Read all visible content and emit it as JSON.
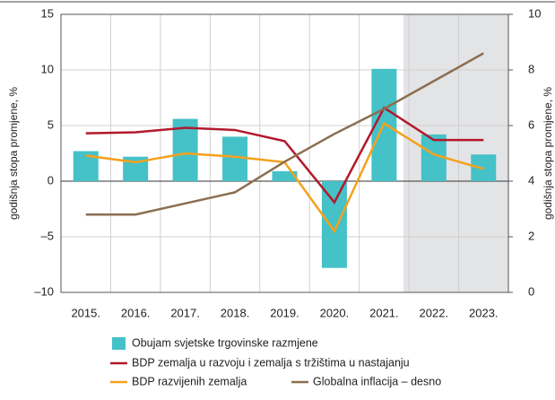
{
  "chart_data": {
    "type": "bar_line",
    "categories": [
      "2015.",
      "2016.",
      "2017.",
      "2018.",
      "2019.",
      "2020.",
      "2021.",
      "2022.",
      "2023."
    ],
    "series": [
      {
        "name": "Obujam svjetske trgovinske razmjene",
        "type": "bar",
        "color": "#45c1c8",
        "axis": "y",
        "values": [
          2.7,
          2.2,
          5.6,
          4.0,
          0.9,
          -7.8,
          10.1,
          4.2,
          2.4
        ]
      },
      {
        "name": "BDP zemalja u razvoju i zemalja s tržištima u nastajanju",
        "type": "line",
        "color": "#b3182c",
        "axis": "y",
        "values": [
          4.3,
          4.4,
          4.8,
          4.6,
          3.6,
          -1.9,
          6.6,
          3.7,
          3.7
        ]
      },
      {
        "name": "BDP razvijenih zemalja",
        "type": "line",
        "color": "#f5a11c",
        "axis": "y",
        "values": [
          2.3,
          1.7,
          2.5,
          2.2,
          1.7,
          -4.5,
          5.2,
          2.4,
          1.1
        ]
      },
      {
        "name": "Globalna inflacija – desno",
        "type": "line",
        "color": "#8c6e50",
        "axis": "y2",
        "values": [
          2.8,
          2.8,
          3.2,
          3.6,
          4.7,
          5.7,
          6.6,
          7.6,
          8.6
        ]
      }
    ],
    "y_label": "godišnja stopa promjene, %",
    "y2_label": "godišnja stopa promjene, %",
    "ylim": [
      -10,
      15
    ],
    "yticks": [
      {
        "value": -10,
        "label": "–10"
      },
      {
        "value": -5,
        "label": "–5"
      },
      0,
      5,
      10,
      15
    ],
    "y2lim": [
      0,
      10
    ],
    "y2ticks": [
      0,
      2,
      4,
      6,
      8,
      10
    ],
    "grid": true
  }
}
